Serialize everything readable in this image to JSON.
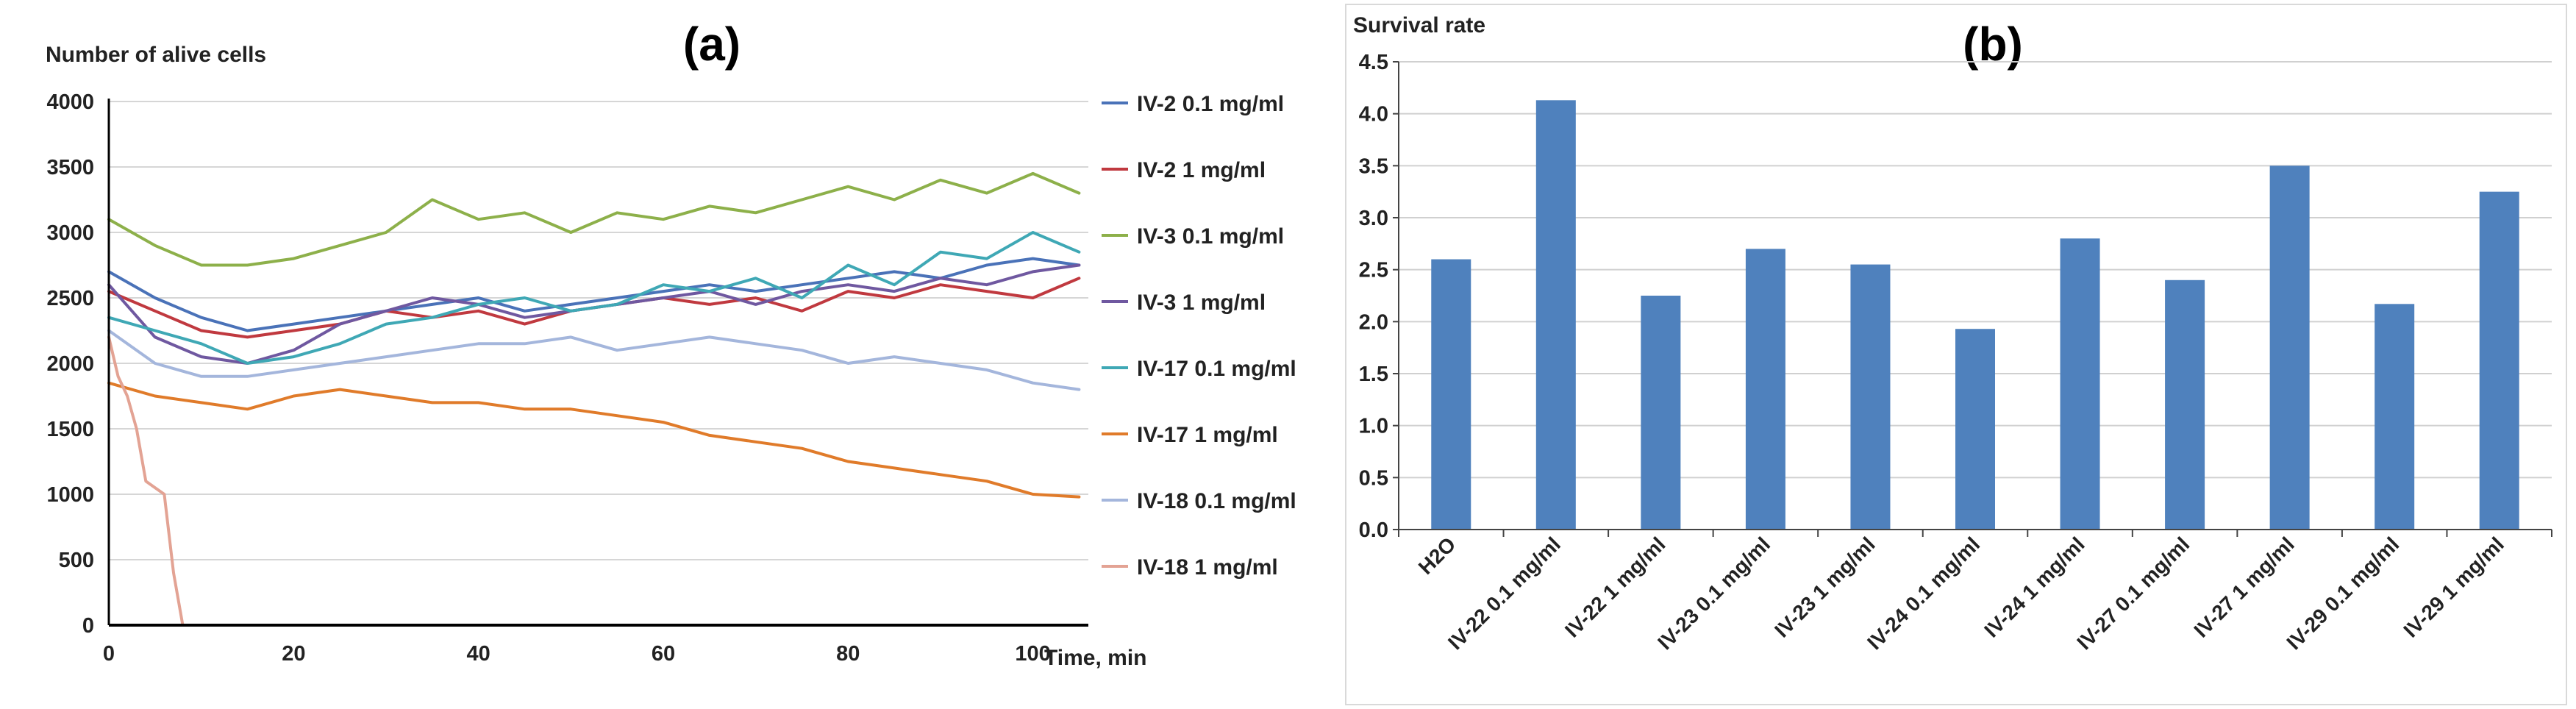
{
  "chart_data": [
    {
      "id": "a",
      "type": "line",
      "panel_label": "(a)",
      "ylabel": "Number of alive cells",
      "xlabel": "Time, min",
      "ylim": [
        0,
        4000
      ],
      "xlim": [
        0,
        106
      ],
      "yticks": [
        "0",
        "500",
        "1000",
        "1500",
        "2000",
        "2500",
        "3000",
        "3500",
        "4000"
      ],
      "xticks": [
        "0",
        "20",
        "40",
        "60",
        "80",
        "100"
      ],
      "grid": true,
      "legend_position": "right",
      "series": [
        {
          "name": "IV-2  0.1 mg/ml",
          "color": "#4a72b8",
          "x": [
            0,
            5,
            10,
            15,
            20,
            25,
            30,
            35,
            40,
            45,
            50,
            55,
            60,
            65,
            70,
            75,
            80,
            85,
            90,
            95,
            100,
            105
          ],
          "y": [
            2700,
            2500,
            2350,
            2250,
            2300,
            2350,
            2400,
            2450,
            2500,
            2400,
            2450,
            2500,
            2550,
            2600,
            2550,
            2600,
            2650,
            2700,
            2650,
            2750,
            2800,
            2750
          ]
        },
        {
          "name": "IV-2  1 mg/ml",
          "color": "#c0393f",
          "x": [
            0,
            5,
            10,
            15,
            20,
            25,
            30,
            35,
            40,
            45,
            50,
            55,
            60,
            65,
            70,
            75,
            80,
            85,
            90,
            95,
            100,
            105
          ],
          "y": [
            2550,
            2400,
            2250,
            2200,
            2250,
            2300,
            2400,
            2350,
            2400,
            2300,
            2400,
            2450,
            2500,
            2450,
            2500,
            2400,
            2550,
            2500,
            2600,
            2550,
            2500,
            2650
          ]
        },
        {
          "name": "IV-3  0.1 mg/ml",
          "color": "#8db04a",
          "x": [
            0,
            5,
            10,
            15,
            20,
            25,
            30,
            35,
            40,
            45,
            50,
            55,
            60,
            65,
            70,
            75,
            80,
            85,
            90,
            95,
            100,
            105
          ],
          "y": [
            3100,
            2900,
            2750,
            2750,
            2800,
            2900,
            3000,
            3250,
            3100,
            3150,
            3000,
            3150,
            3100,
            3200,
            3150,
            3250,
            3350,
            3250,
            3400,
            3300,
            3450,
            3300
          ]
        },
        {
          "name": "IV-3  1 mg/ml",
          "color": "#6f58a0",
          "x": [
            0,
            5,
            10,
            15,
            20,
            25,
            30,
            35,
            40,
            45,
            50,
            55,
            60,
            65,
            70,
            75,
            80,
            85,
            90,
            95,
            100,
            105
          ],
          "y": [
            2600,
            2200,
            2050,
            2000,
            2100,
            2300,
            2400,
            2500,
            2450,
            2350,
            2400,
            2450,
            2500,
            2550,
            2450,
            2550,
            2600,
            2550,
            2650,
            2600,
            2700,
            2750
          ]
        },
        {
          "name": "IV-17  0.1 mg/ml",
          "color": "#3fa8b5",
          "x": [
            0,
            5,
            10,
            15,
            20,
            25,
            30,
            35,
            40,
            45,
            50,
            55,
            60,
            65,
            70,
            75,
            80,
            85,
            90,
            95,
            100,
            105
          ],
          "y": [
            2350,
            2250,
            2150,
            2000,
            2050,
            2150,
            2300,
            2350,
            2450,
            2500,
            2400,
            2450,
            2600,
            2550,
            2650,
            2500,
            2750,
            2600,
            2850,
            2800,
            3000,
            2850
          ]
        },
        {
          "name": "IV-17  1 mg/ml",
          "color": "#e07b2a",
          "x": [
            0,
            5,
            10,
            15,
            20,
            25,
            30,
            35,
            40,
            45,
            50,
            55,
            60,
            65,
            70,
            75,
            80,
            85,
            90,
            95,
            100,
            105
          ],
          "y": [
            1850,
            1750,
            1700,
            1650,
            1750,
            1800,
            1750,
            1700,
            1700,
            1650,
            1650,
            1600,
            1550,
            1450,
            1400,
            1350,
            1250,
            1200,
            1150,
            1100,
            1000,
            980
          ]
        },
        {
          "name": "IV-18  0.1 mg/ml",
          "color": "#a4b6dc",
          "x": [
            0,
            5,
            10,
            15,
            20,
            25,
            30,
            35,
            40,
            45,
            50,
            55,
            60,
            65,
            70,
            75,
            80,
            85,
            90,
            95,
            100,
            105
          ],
          "y": [
            2250,
            2000,
            1900,
            1900,
            1950,
            2000,
            2050,
            2100,
            2150,
            2150,
            2200,
            2100,
            2150,
            2200,
            2150,
            2100,
            2000,
            2050,
            2000,
            1950,
            1850,
            1800
          ]
        },
        {
          "name": "IV-18  1 mg/ml",
          "color": "#e3a394",
          "x": [
            0,
            1,
            2,
            3,
            4,
            5,
            6,
            7,
            8,
            10,
            20,
            40,
            60,
            80,
            100,
            105
          ],
          "y": [
            2200,
            1900,
            1750,
            1500,
            1100,
            1050,
            1000,
            400,
            0,
            0,
            0,
            0,
            0,
            0,
            0,
            0
          ]
        }
      ]
    },
    {
      "id": "b",
      "type": "bar",
      "panel_label": "(b)",
      "ylabel": "Survival rate",
      "xlabel": "",
      "ylim": [
        0,
        4.5
      ],
      "yticks": [
        "0.0",
        "0.5",
        "1.0",
        "1.5",
        "2.0",
        "2.5",
        "3.0",
        "3.5",
        "4.0",
        "4.5"
      ],
      "grid": true,
      "bar_color": "#4f81bd",
      "categories": [
        "H2O",
        "IV-22 0.1 mg/ml",
        "IV-22 1 mg/ml",
        "IV-23 0.1 mg/ml",
        "IV-23 1 mg/ml",
        "IV-24 0.1 mg/ml",
        "IV-24 1 mg/ml",
        "IV-27 0.1 mg/ml",
        "IV-27 1 mg/ml",
        "IV-29 0.1 mg/ml",
        "IV-29 1 mg/ml"
      ],
      "values": [
        2.6,
        4.13,
        2.25,
        2.7,
        2.55,
        1.93,
        2.8,
        2.4,
        3.5,
        2.17,
        3.25
      ]
    }
  ]
}
